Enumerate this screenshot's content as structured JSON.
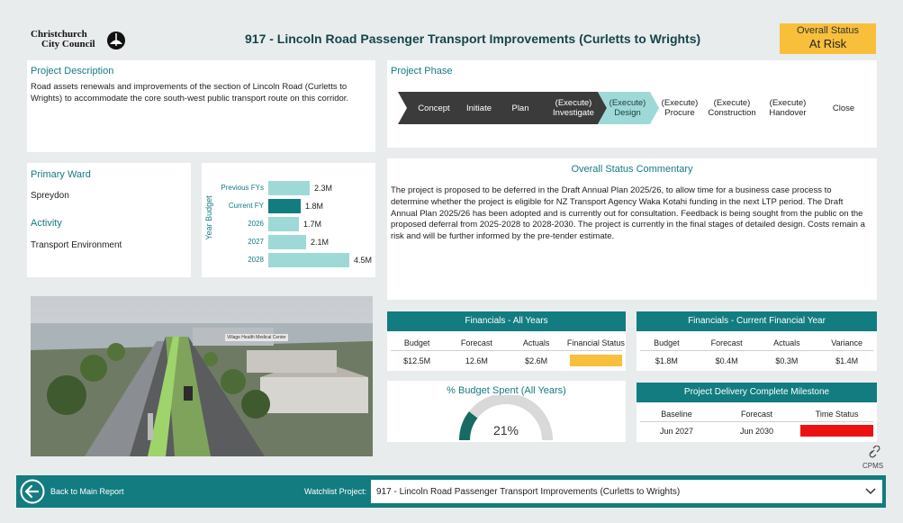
{
  "header": {
    "logo_line1": "Christchurch",
    "logo_line2": "City Council",
    "title": "917 - Lincoln Road Passenger Transport Improvements (Curletts to Wrights)",
    "status_label": "Overall Status",
    "status_value": "At Risk"
  },
  "description": {
    "heading": "Project Description",
    "text": "Road assets renewals and improvements of the section of Lincoln Road (Curletts to Wrights) to accommodate the core south-west public transport route on this corridor."
  },
  "phase": {
    "heading": "Project Phase",
    "steps": [
      {
        "line1": "Concept",
        "line2": ""
      },
      {
        "line1": "Initiate",
        "line2": ""
      },
      {
        "line1": "Plan",
        "line2": ""
      },
      {
        "line1": "(Execute)",
        "line2": "Investigate"
      },
      {
        "line1": "(Execute)",
        "line2": "Design"
      },
      {
        "line1": "(Execute)",
        "line2": "Procure"
      },
      {
        "line1": "(Execute)",
        "line2": "Construction"
      },
      {
        "line1": "(Execute)",
        "line2": "Handover"
      },
      {
        "line1": "Close",
        "line2": ""
      }
    ],
    "colors": {
      "done": "#3b3b3b",
      "current": "#9ed9d7"
    }
  },
  "ward": {
    "ward_heading": "Primary Ward",
    "ward_value": "Spreydon",
    "activity_heading": "Activity",
    "activity_value": "Transport Environment"
  },
  "chart_data": {
    "type": "bar",
    "orientation": "horizontal",
    "ylabel": "Year Budget",
    "categories": [
      "Previous FYs",
      "Current FY",
      "2026",
      "2027",
      "2028"
    ],
    "values": [
      2.3,
      1.8,
      1.7,
      2.1,
      4.5
    ],
    "value_labels": [
      "2.3M",
      "1.8M",
      "1.7M",
      "2.1M",
      "4.5M"
    ],
    "highlight_index": 1,
    "colors": {
      "bar": "#9ed9d7",
      "highlight": "#137c80"
    }
  },
  "commentary": {
    "heading": "Overall Status Commentary",
    "text": "The project is proposed to be deferred in the Draft Annual Plan 2025/26, to allow time for a business case process to determine whether the project is eligible for NZ Transport Agency Waka Kotahi funding in the next LTP period. The Draft Annual Plan 2025/26 has been adopted and is currently out for consultation. Feedback is being sought from the public on the proposed deferral from 2025-2028 to 2028-2030. The project is currently in the final stages of detailed design. Costs remain a risk and will be further informed by the pre-tender estimate."
  },
  "image": {
    "sign_text": "Village Health Medical Center"
  },
  "fin_all": {
    "heading": "Financials - All Years",
    "columns": [
      "Budget",
      "Forecast",
      "Actuals",
      "Financial Status"
    ],
    "values": [
      "$12.5M",
      "12.6M",
      "$2.6M",
      ""
    ],
    "status_color": "#f8bf3b"
  },
  "fin_current": {
    "heading": "Financials - Current Financial Year",
    "columns": [
      "Budget",
      "Forecast",
      "Actuals",
      "Variance"
    ],
    "values": [
      "$1.8M",
      "$0.4M",
      "$0.3M",
      "$1.4M"
    ]
  },
  "budget_spent": {
    "heading": "% Budget Spent (All Years)",
    "value_label": "21%",
    "fraction": 0.21,
    "colors": {
      "fill": "#176b63",
      "track": "#d9d9d9"
    }
  },
  "milestone": {
    "heading": "Project Delivery Complete Milestone",
    "columns": [
      "Baseline",
      "Forecast",
      "Time Status"
    ],
    "values": [
      "Jun 2027",
      "Jun 2030",
      ""
    ],
    "status_color": "#ee1111"
  },
  "cpms": {
    "label": "CPMS"
  },
  "footer": {
    "back_label": "Back to Main Report",
    "watchlist_label": "Watchlist Project:",
    "watchlist_value": "917 - Lincoln Road Passenger Transport Improvements (Curletts to Wrights)"
  }
}
